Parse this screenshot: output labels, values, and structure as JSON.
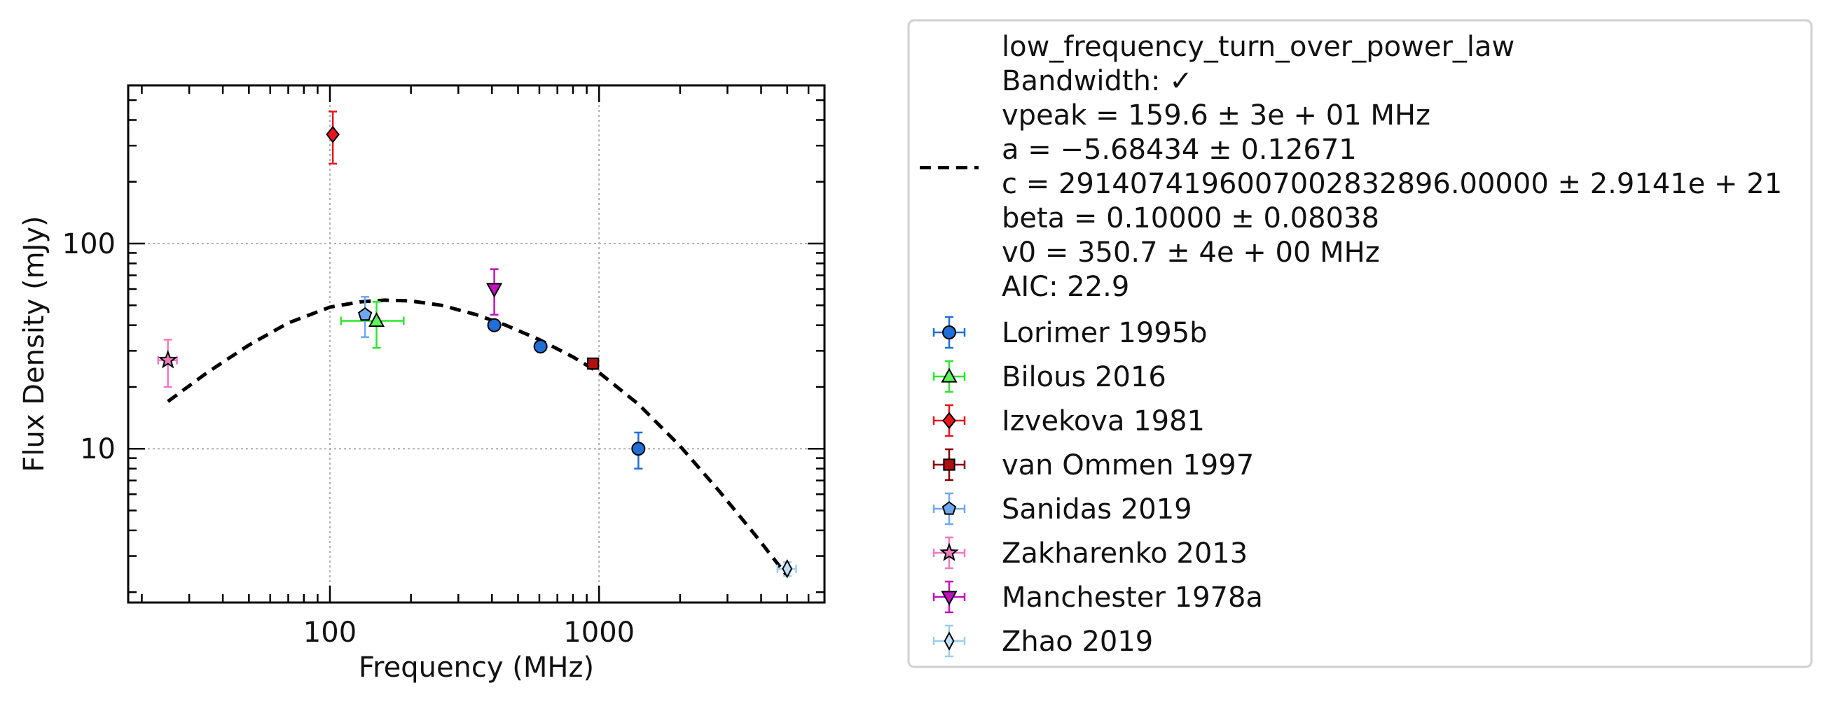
{
  "chart_data": {
    "type": "scatter",
    "xlabel": "Frequency (MHz)",
    "ylabel": "Flux Density (mJy)",
    "xscale": "log",
    "yscale": "log",
    "xlim": [
      17.8,
      6880
    ],
    "ylim": [
      1.78,
      590
    ],
    "x_ticks": [
      100,
      1000
    ],
    "x_tick_labels": [
      "100",
      "1000"
    ],
    "y_ticks": [
      10,
      100
    ],
    "y_tick_labels": [
      "10",
      "100"
    ],
    "grid": true,
    "legend_position": "outside-right",
    "fit": {
      "model": "low_frequency_turn_over_power_law",
      "style": "dashed",
      "color": "#000000",
      "x": [
        25,
        35,
        50,
        70,
        100,
        130,
        160,
        200,
        260,
        350,
        450,
        600,
        800,
        1000,
        1400,
        2000,
        2800,
        3800,
        5000
      ],
      "y": [
        17,
        23.5,
        32,
        41,
        49,
        52,
        53,
        52.5,
        50,
        45,
        40,
        34,
        28,
        23.5,
        16.5,
        10.3,
        6.2,
        3.8,
        2.4
      ],
      "legend_lines": [
        "low_frequency_turn_over_power_law",
        "Bandwidth: ✓",
        "vpeak = 159.6 ± 3e + 01 MHz",
        "a = −5.68434 ± 0.12671",
        "c = 2914074196007002832896.00000 ± 2.9141e + 21",
        "beta = 0.10000 ± 0.08038",
        "v0 = 350.7 ± 4e + 00 MHz",
        "AIC: 22.9"
      ]
    },
    "series": [
      {
        "name": "Lorimer 1995b",
        "marker": "circle",
        "color": "#1f6fd6",
        "errcolor": "#1f6fd6",
        "points": [
          {
            "x": 408,
            "y": 40,
            "ylo": 38,
            "yhi": 42
          },
          {
            "x": 606,
            "y": 31.5,
            "ylo": 30,
            "yhi": 33
          },
          {
            "x": 1400,
            "y": 10,
            "ylo": 8,
            "yhi": 12
          }
        ]
      },
      {
        "name": "Bilous 2016",
        "marker": "triangle-up",
        "color": "#5cf55c",
        "errcolor": "#2ee62e",
        "points": [
          {
            "x": 149,
            "y": 42,
            "ylo": 31,
            "yhi": 52,
            "xlo": 110,
            "xhi": 188
          }
        ]
      },
      {
        "name": "Izvekova 1981",
        "marker": "diamond",
        "color": "#e8141b",
        "errcolor": "#e8141b",
        "points": [
          {
            "x": 102.5,
            "y": 340,
            "ylo": 245,
            "yhi": 440
          }
        ]
      },
      {
        "name": "van Ommen 1997",
        "marker": "square",
        "color": "#b01010",
        "errcolor": "#8b0000",
        "points": [
          {
            "x": 950,
            "y": 26,
            "ylo": 24.5,
            "yhi": 27.5
          }
        ]
      },
      {
        "name": "Sanidas 2019",
        "marker": "pentagon",
        "color": "#6fa8f0",
        "errcolor": "#6fa8f0",
        "points": [
          {
            "x": 135,
            "y": 45,
            "ylo": 35,
            "yhi": 55
          }
        ]
      },
      {
        "name": "Zakharenko 2013",
        "marker": "star",
        "color": "#ee7bc0",
        "errcolor": "#ee7bc0",
        "points": [
          {
            "x": 25,
            "y": 27,
            "ylo": 20,
            "yhi": 34,
            "xlo": 23,
            "xhi": 27
          }
        ]
      },
      {
        "name": "Manchester 1978a",
        "marker": "triangle-down",
        "color": "#c012c0",
        "errcolor": "#c012c0",
        "points": [
          {
            "x": 408,
            "y": 60,
            "ylo": 45,
            "yhi": 75
          }
        ]
      },
      {
        "name": "Zhao 2019",
        "marker": "thin-diamond",
        "color": "#bfe0fa",
        "errcolor": "#9ccfee",
        "points": [
          {
            "x": 5000,
            "y": 2.6,
            "ylo": 2.4,
            "yhi": 2.8,
            "xlo": 4600,
            "xhi": 5400
          }
        ]
      }
    ]
  }
}
